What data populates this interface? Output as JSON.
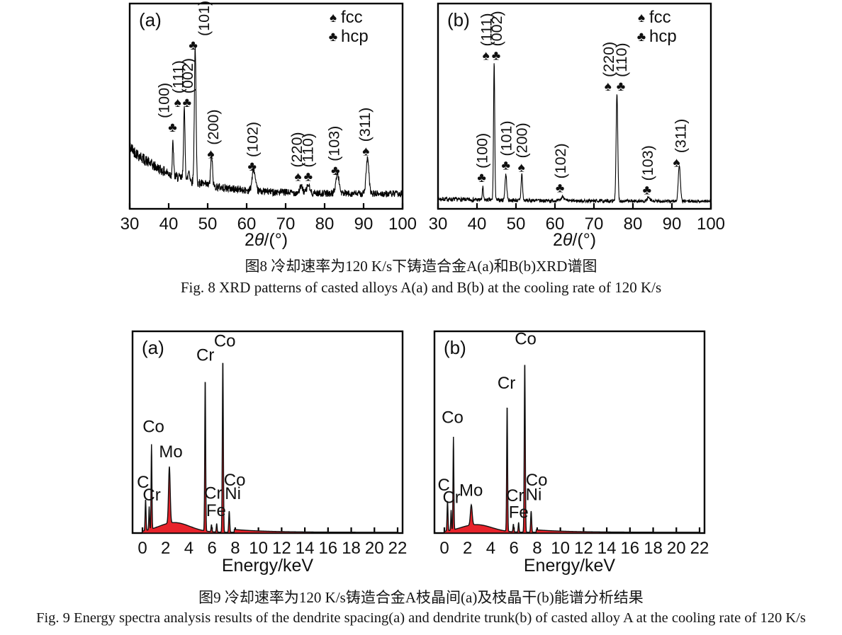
{
  "page": {
    "background": "#ffffff",
    "text_color": "#141414"
  },
  "fig8": {
    "caption_zh": "图8  冷却速率为120 K/s下铸造合金A(a)和B(b)XRD谱图",
    "caption_en": "Fig. 8  XRD patterns of casted alloys A(a) and B(b) at the cooling rate of 120 K/s"
  },
  "fig9": {
    "caption_zh": "图9  冷却速率为120 K/s铸造合金A枝晶间(a)及枝晶干(b)能谱分析结果",
    "caption_en": "Fig. 9  Energy spectra analysis results of the dendrite spacing(a) and dendrite trunk(b) of casted alloy A at the cooling rate of 120 K/s"
  },
  "chart_data": [
    {
      "id": "xrd-a",
      "type": "line",
      "panel_label": "(a)",
      "xlabel_parts": [
        "2",
        "θ",
        "/(°)"
      ],
      "xlim": [
        30,
        100
      ],
      "xticks": [
        30,
        40,
        50,
        60,
        70,
        80,
        90,
        100
      ],
      "line_color": "#000000",
      "legend": [
        {
          "glyph": "♠",
          "label": "fcc"
        },
        {
          "glyph": "♣",
          "label": "hcp"
        }
      ],
      "baseline": {
        "base": 0.072,
        "amp": 0.23,
        "decay": 12,
        "noise_base": 0.016,
        "noise_amp": 0.015,
        "noise_decay": 18,
        "seed": 42
      },
      "peaks": [
        {
          "x": 41.1,
          "h": 0.16,
          "w": 0.22
        },
        {
          "x": 44.0,
          "h": 0.335,
          "w": 0.28
        },
        {
          "x": 45.2,
          "h": 0.05,
          "w": 0.3
        },
        {
          "x": 46.8,
          "h": 0.66,
          "w": 0.3
        },
        {
          "x": 51.0,
          "h": 0.155,
          "w": 0.32
        },
        {
          "x": 61.8,
          "h": 0.105,
          "w": 0.55
        },
        {
          "x": 74.0,
          "h": 0.03,
          "w": 0.55
        },
        {
          "x": 75.8,
          "h": 0.04,
          "w": 0.5
        },
        {
          "x": 83.3,
          "h": 0.095,
          "w": 0.6
        },
        {
          "x": 91.0,
          "h": 0.17,
          "w": 0.5
        }
      ],
      "annotations": [
        {
          "label": "(100)",
          "glyph": "♣",
          "x": 41.0,
          "lx": 38.6,
          "y": 0.4
        },
        {
          "label": "(111)",
          "glyph": "♠",
          "x": 42.3,
          "y": 0.52
        },
        {
          "label": "(002)",
          "glyph": "♣",
          "x": 44.7,
          "y": 0.52
        },
        {
          "label": "(101)",
          "glyph": "♣",
          "x": 46.3,
          "lx": 48.9,
          "y": 0.8
        },
        {
          "label": "(200)",
          "glyph": "♠",
          "x": 50.8,
          "lx": 51.3,
          "y": 0.27
        },
        {
          "label": "(102)",
          "glyph": "♣",
          "x": 61.4,
          "y": 0.21
        },
        {
          "label": "(220)",
          "glyph": "♠",
          "x": 73.2,
          "lx": 72.7,
          "y": 0.16
        },
        {
          "label": "(110)",
          "glyph": "♣",
          "x": 75.8,
          "lx": 75.5,
          "y": 0.16
        },
        {
          "label": "(103)",
          "glyph": "♣",
          "x": 82.8,
          "lx": 82.3,
          "y": 0.19
        },
        {
          "label": "(311)",
          "glyph": "♠",
          "x": 90.6,
          "lx": 90.2,
          "y": 0.285
        }
      ]
    },
    {
      "id": "xrd-b",
      "type": "line",
      "panel_label": "(b)",
      "xlabel_parts": [
        "2",
        "θ",
        "/(°)"
      ],
      "xlim": [
        30,
        100
      ],
      "xticks": [
        30,
        40,
        50,
        60,
        70,
        80,
        90,
        100
      ],
      "line_color": "#000000",
      "legend": [
        {
          "glyph": "♠",
          "label": "fcc"
        },
        {
          "glyph": "♣",
          "label": "hcp"
        }
      ],
      "baseline": {
        "base": 0.036,
        "amp": 0.012,
        "decay": 25,
        "noise_base": 0.007,
        "noise_amp": 0.004,
        "noise_decay": 30,
        "seed": 7
      },
      "peaks": [
        {
          "x": 41.5,
          "h": 0.06,
          "w": 0.2
        },
        {
          "x": 44.4,
          "h": 0.67,
          "w": 0.22
        },
        {
          "x": 47.4,
          "h": 0.125,
          "w": 0.32
        },
        {
          "x": 51.5,
          "h": 0.13,
          "w": 0.26
        },
        {
          "x": 62.0,
          "h": 0.022,
          "w": 0.5
        },
        {
          "x": 75.9,
          "h": 0.52,
          "w": 0.3
        },
        {
          "x": 84.0,
          "h": 0.016,
          "w": 0.5
        },
        {
          "x": 91.9,
          "h": 0.175,
          "w": 0.38
        }
      ],
      "annotations": [
        {
          "label": "(100)",
          "glyph": "♣",
          "x": 41.2,
          "y": 0.155
        },
        {
          "label": "(111)",
          "glyph": "♠",
          "x": 42.3,
          "y": 0.75
        },
        {
          "label": "(002)",
          "glyph": "♣",
          "x": 44.9,
          "y": 0.75
        },
        {
          "label": "(101)",
          "glyph": "♣",
          "x": 47.4,
          "y": 0.215
        },
        {
          "label": "(200)",
          "glyph": "♠",
          "x": 51.4,
          "y": 0.205
        },
        {
          "label": "(102)",
          "glyph": "♣",
          "x": 61.3,
          "y": 0.105
        },
        {
          "label": "(220)",
          "glyph": "♠",
          "x": 73.6,
          "y": 0.6
        },
        {
          "label": "(110)",
          "glyph": "♣",
          "x": 76.9,
          "y": 0.6
        },
        {
          "label": "(103)",
          "glyph": "♣",
          "x": 83.6,
          "y": 0.095
        },
        {
          "label": "(311)",
          "glyph": "♠",
          "x": 91.2,
          "lx": 92.1,
          "y": 0.23
        }
      ]
    },
    {
      "id": "eds-a",
      "type": "area",
      "panel_label": "(a)",
      "xlabel": "Energy/keV",
      "xlim": [
        0,
        22
      ],
      "xticks": [
        0,
        2,
        4,
        6,
        8,
        10,
        12,
        14,
        16,
        18,
        20,
        22
      ],
      "fill_color": "#e8232b",
      "line_color": "#111111",
      "background": {
        "base": 0.004,
        "hump_amp": 0.048,
        "hump_center": 2.75,
        "hump_sigma": 1.9,
        "tail_amp": 0.014,
        "tail_start": 7.9,
        "tail_decay": 2.8
      },
      "peaks": [
        {
          "x": 0.27,
          "h": 0.155,
          "w": 0.055,
          "element": "C"
        },
        {
          "x": 0.58,
          "h": 0.115,
          "w": 0.045,
          "element": "Cr"
        },
        {
          "x": 0.78,
          "h": 0.42,
          "w": 0.05,
          "element": "Co"
        },
        {
          "x": 2.32,
          "h": 0.28,
          "w": 0.1,
          "element": "Mo"
        },
        {
          "x": 5.41,
          "h": 0.76,
          "w": 0.055,
          "element": "Cr"
        },
        {
          "x": 5.95,
          "h": 0.035,
          "w": 0.05,
          "element": "Cr"
        },
        {
          "x": 6.4,
          "h": 0.042,
          "w": 0.05,
          "element": "Fe"
        },
        {
          "x": 6.93,
          "h": 0.86,
          "w": 0.06,
          "element": "Co"
        },
        {
          "x": 7.48,
          "h": 0.105,
          "w": 0.06,
          "element": "Ni"
        }
      ],
      "labels": [
        {
          "text": "C",
          "x": 0.05,
          "y": 0.225
        },
        {
          "text": "Cr",
          "x": 0.8,
          "y": 0.162
        },
        {
          "text": "Co",
          "x": 0.95,
          "y": 0.5
        },
        {
          "text": "Mo",
          "x": 2.45,
          "y": 0.375
        },
        {
          "text": "Cr",
          "x": 5.42,
          "y": 0.855
        },
        {
          "text": "Cr",
          "x": 6.1,
          "y": 0.17
        },
        {
          "text": "Fe",
          "x": 6.35,
          "y": 0.085
        },
        {
          "text": "Co",
          "x": 7.1,
          "y": 0.925
        },
        {
          "text": "Co",
          "x": 7.95,
          "y": 0.235
        },
        {
          "text": "Ni",
          "x": 7.8,
          "y": 0.168
        }
      ]
    },
    {
      "id": "eds-b",
      "type": "area",
      "panel_label": "(b)",
      "xlabel": "Energy/keV",
      "xlim": [
        0,
        22
      ],
      "xticks": [
        0,
        2,
        4,
        6,
        8,
        10,
        12,
        14,
        16,
        18,
        20,
        22
      ],
      "fill_color": "#e8232b",
      "line_color": "#111111",
      "background": {
        "base": 0.004,
        "hump_amp": 0.038,
        "hump_center": 2.75,
        "hump_sigma": 1.9,
        "tail_amp": 0.012,
        "tail_start": 7.9,
        "tail_decay": 2.8
      },
      "peaks": [
        {
          "x": 0.27,
          "h": 0.15,
          "w": 0.055,
          "element": "C"
        },
        {
          "x": 0.58,
          "h": 0.1,
          "w": 0.045,
          "element": "Cr"
        },
        {
          "x": 0.78,
          "h": 0.46,
          "w": 0.05,
          "element": "Co"
        },
        {
          "x": 2.32,
          "h": 0.1,
          "w": 0.11,
          "element": "Mo"
        },
        {
          "x": 5.41,
          "h": 0.63,
          "w": 0.055,
          "element": "Cr"
        },
        {
          "x": 5.95,
          "h": 0.038,
          "w": 0.05,
          "element": "Cr"
        },
        {
          "x": 6.4,
          "h": 0.048,
          "w": 0.05,
          "element": "Fe"
        },
        {
          "x": 6.93,
          "h": 0.85,
          "w": 0.06,
          "element": "Co"
        },
        {
          "x": 7.48,
          "h": 0.105,
          "w": 0.06,
          "element": "Ni"
        }
      ],
      "labels": [
        {
          "text": "C",
          "x": -0.05,
          "y": 0.21
        },
        {
          "text": "Cr",
          "x": 0.62,
          "y": 0.15
        },
        {
          "text": "Co",
          "x": 0.7,
          "y": 0.545
        },
        {
          "text": "Mo",
          "x": 2.3,
          "y": 0.185
        },
        {
          "text": "Cr",
          "x": 5.35,
          "y": 0.715
        },
        {
          "text": "Cr",
          "x": 6.1,
          "y": 0.158
        },
        {
          "text": "Fe",
          "x": 6.4,
          "y": 0.075
        },
        {
          "text": "Co",
          "x": 7.0,
          "y": 0.935
        },
        {
          "text": "Co",
          "x": 7.95,
          "y": 0.235
        },
        {
          "text": "Ni",
          "x": 7.7,
          "y": 0.163
        }
      ]
    }
  ]
}
